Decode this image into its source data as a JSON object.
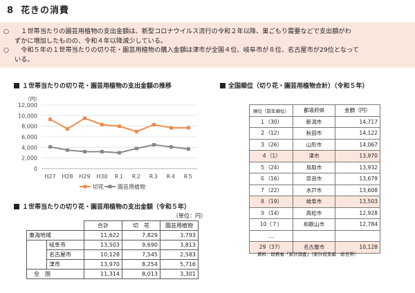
{
  "title": {
    "number": "8",
    "text": "花きの消費"
  },
  "summary": {
    "mark": "○",
    "b1_line1": "　１世帯当たりの園芸用植物の支出金額は、新型コロナウイルス流行の令和２年以降、巣ごもり需要などで支出額がわ",
    "b1_line2": "ずかに増加したものの、令和４年以降減少している。",
    "b2_line1": "　令和５年の１世帯当たりの切り花・園芸用植物の購入金額は津市が全国４位、岐阜市が８位、名古屋市が29位となって",
    "b2_line2": "いる。"
  },
  "sections": {
    "trend": "１世帯当たりの切り花・園芸用植物の支出金額の推移",
    "rank": "全国順位（切り花・園芸用植物合計）（令和５年）",
    "spend": "１世帯当たりの切り花・園芸用植物の支出金額（令和５年）"
  },
  "chart_data": {
    "type": "line",
    "ylabel": "（円）",
    "ylim": [
      0,
      12000
    ],
    "yticks": [
      "0",
      "2,000",
      "4,000",
      "6,000",
      "8,000",
      "10,000",
      "12,000"
    ],
    "categories": [
      "H27",
      "H28",
      "H29",
      "H30",
      "R１",
      "R２",
      "R３",
      "R４",
      "R５"
    ],
    "series": [
      {
        "name": "切花",
        "color": "#ef8c4d",
        "values": [
          9300,
          7500,
          9500,
          8300,
          8000,
          7000,
          8300,
          7700,
          7700
        ]
      },
      {
        "name": "園芸用植物",
        "color": "#888888",
        "values": [
          4100,
          3500,
          3200,
          3200,
          3000,
          3800,
          4500,
          4100,
          3700
        ]
      }
    ]
  },
  "spend_table": {
    "unit": "（単位：円）",
    "headers": [
      "合計",
      "切　花",
      "園芸用植物"
    ],
    "rows": [
      {
        "name": "東海地域",
        "total": "11,622",
        "cut": "7,829",
        "garden": "3,793"
      },
      {
        "name": "岐阜市",
        "total": "13,503",
        "cut": "9,690",
        "garden": "3,813"
      },
      {
        "name": "名古屋市",
        "total": "10,128",
        "cut": "7,545",
        "garden": "2,583"
      },
      {
        "name": "津市",
        "total": "13,970",
        "cut": "8,254",
        "garden": "5,716"
      },
      {
        "name": "全　国",
        "total": "11,314",
        "cut": "8,013",
        "garden": "3,301"
      }
    ]
  },
  "rank_table": {
    "headers": [
      "順位（前年順位）",
      "都道府県",
      "金額（円）"
    ],
    "rows": [
      {
        "rank": "１（30）",
        "city": "新潟市",
        "amount": "14,717"
      },
      {
        "rank": "２（12）",
        "city": "秋田市",
        "amount": "14,122"
      },
      {
        "rank": "３（26）",
        "city": "山形市",
        "amount": "14,067"
      },
      {
        "rank": "４（1）",
        "city": "津市",
        "amount": "13,970"
      },
      {
        "rank": "５（24）",
        "city": "鳥取市",
        "amount": "13,932"
      },
      {
        "rank": "６（16）",
        "city": "奈良市",
        "amount": "13,679"
      },
      {
        "rank": "７（22）",
        "city": "水戸市",
        "amount": "13,608"
      },
      {
        "rank": "８（19）",
        "city": "岐阜市",
        "amount": "13,503"
      },
      {
        "rank": "９（14）",
        "city": "高松市",
        "amount": "12,928"
      },
      {
        "rank": "10（７）",
        "city": "和歌山市",
        "amount": "12,784"
      },
      {
        "rank": "…",
        "city": "",
        "amount": ""
      },
      {
        "rank": "29（37）",
        "city": "名古屋市",
        "amount": "10,128"
      }
    ],
    "highlight_color": "#fbe6dd"
  },
  "source": "資料：総務省「家計調査」（家計収支編　総世帯）"
}
